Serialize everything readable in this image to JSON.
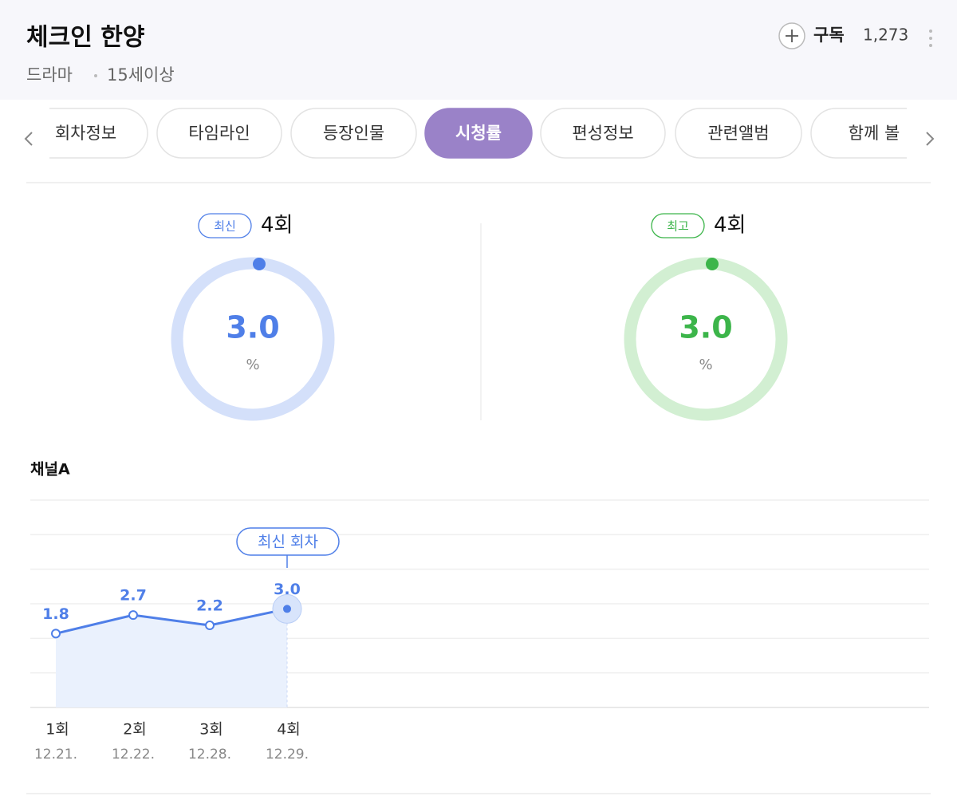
{
  "header": {
    "title": "체크인 한양",
    "genre": "드라마",
    "age_rating": "15세이상",
    "subscribe": "구독",
    "subscribers": "1,273"
  },
  "tabs": [
    "회차정보",
    "타임라인",
    "등장인물",
    "시청률",
    "편성정보",
    "관련앨범",
    "함께 볼"
  ],
  "ratings": [
    {
      "badge": "최신",
      "episode": "4회",
      "rating": "3.0",
      "unit": "%",
      "color": "#4f7fe8",
      "ring": "#d4e0fa"
    },
    {
      "badge": "최고",
      "episode": "4회",
      "rating": "3.0",
      "unit": "%",
      "color": "#3cb54a",
      "ring": "#d2efd2"
    }
  ],
  "chart_data": {
    "type": "line",
    "title": "채널A",
    "categories": [
      "1회",
      "2회",
      "3회",
      "4회"
    ],
    "dates": [
      "12.21.",
      "12.22.",
      "12.28.",
      "12.29."
    ],
    "values": [
      1.8,
      2.7,
      2.2,
      3.0
    ],
    "value_labels": [
      "1.8",
      "2.7",
      "2.2",
      "3.0"
    ],
    "annotation": "최신 회차",
    "color": "#4f7fe8",
    "ylim": [
      -1.8,
      8.3
    ],
    "grid": true
  }
}
